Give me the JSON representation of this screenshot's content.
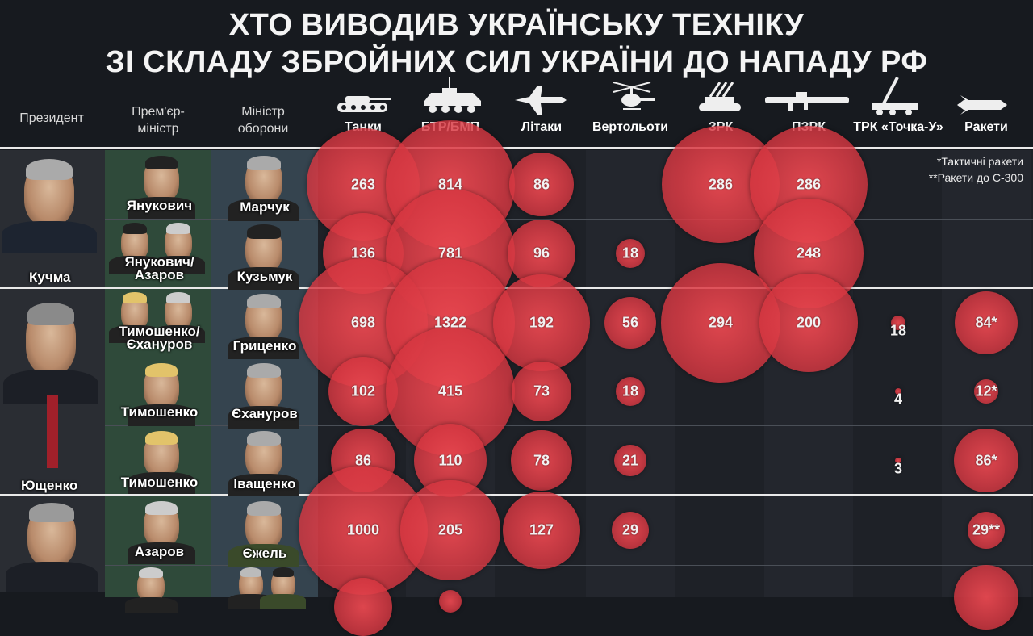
{
  "title": {
    "line1": "ХТО ВИВОДИВ УКРАЇНСЬКУ ТЕХНІКУ",
    "line2": "ЗІ СКЛАДУ ЗБРОЙНИХ СИЛ УКРАЇНИ ДО НАПАДУ РФ"
  },
  "headers": {
    "president": "Президент",
    "pm": "Прем'єр-\nміністр",
    "dm": "Міністр\nоборони"
  },
  "categories": [
    "Танки",
    "БТР/БМП",
    "Літаки",
    "Вертольоти",
    "ЗРК",
    "ПЗРК",
    "ТРК «Точка-У»",
    "Ракети"
  ],
  "icons": [
    "tank-icon",
    "apc-icon",
    "jet-icon",
    "helicopter-icon",
    "sam-icon",
    "manpads-icon",
    "tochka-icon",
    "missile-icon"
  ],
  "notes": {
    "tactical": "*Тактичні ракети",
    "s300": "**Ракети до С-300"
  },
  "presidents": [
    "Кучма",
    "Ющенко",
    ""
  ],
  "rows": [
    {
      "pm": "Янукович",
      "dm": "Марчук",
      "values": [
        "263",
        "814",
        "86",
        "",
        "286",
        "286",
        "",
        ""
      ]
    },
    {
      "pm": "Янукович/\nАзаров",
      "dm": "Кузьмук",
      "values": [
        "136",
        "781",
        "96",
        "18",
        "",
        "248",
        "",
        ""
      ]
    },
    {
      "pm": "Тимошенко/\nЄхануров",
      "dm": "Гриценко",
      "values": [
        "698",
        "1322",
        "192",
        "56",
        "294",
        "200",
        "18",
        "84*"
      ]
    },
    {
      "pm": "Тимошенко",
      "dm": "Єхануров",
      "values": [
        "102",
        "415",
        "73",
        "18",
        "",
        "",
        "4",
        "12*"
      ]
    },
    {
      "pm": "Тимошенко",
      "dm": "Іващенко",
      "values": [
        "86",
        "110",
        "78",
        "21",
        "",
        "",
        "3",
        "86*"
      ]
    },
    {
      "pm": "Азаров",
      "dm": "Єжель",
      "values": [
        "1000",
        "205",
        "127",
        "29",
        "",
        "",
        "",
        "29**"
      ]
    },
    {
      "pm": "",
      "dm": "",
      "values": [
        "",
        "",
        "",
        "",
        "",
        "",
        "",
        ""
      ]
    }
  ],
  "colors": {
    "bubble": "#e04650",
    "background": "#171a1f",
    "pm_column": "#2f4a3a",
    "dm_column": "#35444f"
  }
}
